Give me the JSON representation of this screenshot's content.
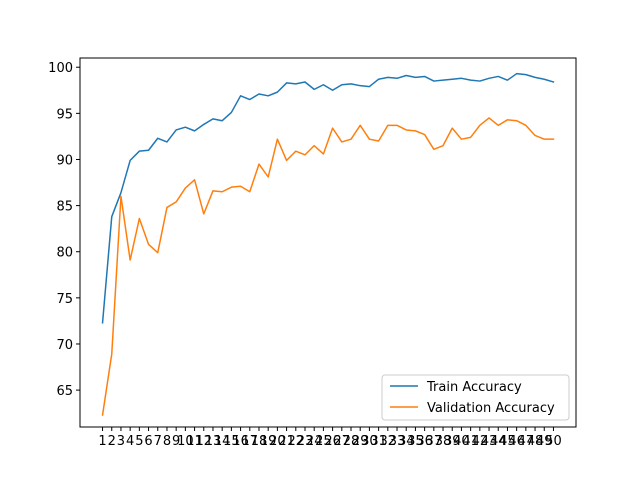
{
  "chart_data": {
    "type": "line",
    "x": [
      1,
      2,
      3,
      4,
      5,
      6,
      7,
      8,
      9,
      10,
      11,
      12,
      13,
      14,
      15,
      16,
      17,
      18,
      19,
      20,
      21,
      22,
      23,
      24,
      25,
      26,
      27,
      28,
      29,
      30,
      31,
      32,
      33,
      34,
      35,
      36,
      37,
      38,
      39,
      40,
      41,
      42,
      43,
      44,
      45,
      46,
      47,
      48,
      49,
      50
    ],
    "ylim": [
      61,
      101
    ],
    "yticks": [
      65,
      70,
      75,
      80,
      85,
      90,
      95,
      100
    ],
    "series": [
      {
        "name": "Train Accuracy",
        "color": "#1f77b4",
        "values": [
          72.3,
          83.8,
          86.4,
          89.9,
          90.9,
          91.0,
          92.3,
          91.9,
          93.2,
          93.5,
          93.1,
          93.8,
          94.4,
          94.2,
          95.1,
          96.9,
          96.5,
          97.1,
          96.9,
          97.3,
          98.3,
          98.2,
          98.4,
          97.6,
          98.1,
          97.5,
          98.1,
          98.2,
          98.0,
          97.9,
          98.7,
          98.9,
          98.8,
          99.1,
          98.9,
          99.0,
          98.5,
          98.6,
          98.7,
          98.8,
          98.6,
          98.5,
          98.8,
          99.0,
          98.6,
          99.3,
          99.2,
          98.9,
          98.7,
          98.4
        ]
      },
      {
        "name": "Validation Accuracy",
        "color": "#ff7f0e",
        "values": [
          62.3,
          68.9,
          86.0,
          79.1,
          83.6,
          80.8,
          79.9,
          84.8,
          85.4,
          86.9,
          87.8,
          84.1,
          86.6,
          86.5,
          87.0,
          87.1,
          86.5,
          89.5,
          88.1,
          92.2,
          89.9,
          90.9,
          90.5,
          91.5,
          90.6,
          93.4,
          91.9,
          92.2,
          93.7,
          92.2,
          92.0,
          93.7,
          93.7,
          93.2,
          93.1,
          92.7,
          91.1,
          91.5,
          93.4,
          92.2,
          92.4,
          93.7,
          94.5,
          93.7,
          94.3,
          94.2,
          93.7,
          92.6,
          92.2,
          92.2
        ]
      }
    ],
    "legend": {
      "placement": "lower-right",
      "entries": [
        "Train Accuracy",
        "Validation Accuracy"
      ]
    },
    "grid": false
  }
}
